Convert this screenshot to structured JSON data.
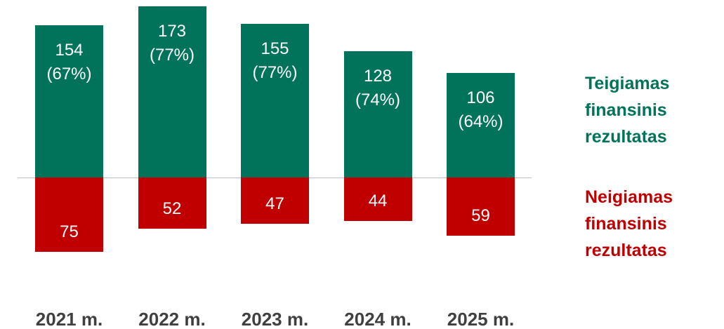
{
  "chart_data": {
    "type": "diverging-bar",
    "categories": [
      "2021 m.",
      "2022 m.",
      "2023 m.",
      "2024 m.",
      "2025 m."
    ],
    "series": [
      {
        "name": "Teigiamas finansinis rezultatas",
        "color": "#00735a",
        "values": [
          154,
          173,
          155,
          128,
          106
        ],
        "value_labels": [
          "154\n(67%)",
          "173\n(77%)",
          "155\n(77%)",
          "128\n(74%)",
          "106\n(64%)"
        ]
      },
      {
        "name": "Neigiamas finansinis rezultatas",
        "color": "#c00000",
        "values": [
          -75,
          -52,
          -47,
          -44,
          -59
        ],
        "value_labels": [
          "75",
          "52",
          "47",
          "44",
          "59"
        ]
      }
    ]
  }
}
